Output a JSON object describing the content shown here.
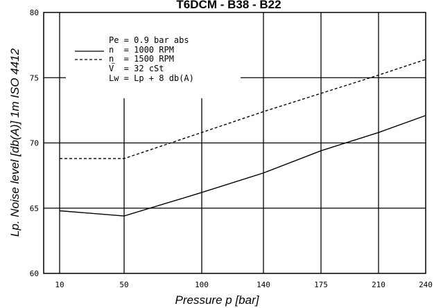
{
  "chart_data": {
    "type": "line",
    "title": "T6DCM - B38 - B22",
    "xlabel": "Pressure p [bar]",
    "ylabel": "Lp. Noise level [db(A)] 1m ISO 4412",
    "categories": [
      "10",
      "50",
      "100",
      "140",
      "175",
      "210",
      "240"
    ],
    "ylim": [
      60,
      80
    ],
    "yticks": [
      "60",
      "65",
      "70",
      "75",
      "80"
    ],
    "grid": true,
    "legend_position": "top-left",
    "legend_lines": [
      "Pe = 0.9 bar abs",
      "n  = 1000 RPM",
      "n  = 1500 RPM",
      "V  = 32 cSt",
      "Lw = Lp + 8 db(A)"
    ],
    "series": [
      {
        "name": "n = 1000 RPM",
        "style": "solid",
        "values": [
          64.8,
          64.4,
          66.2,
          67.7,
          69.4,
          70.8,
          72.1
        ]
      },
      {
        "name": "n = 1500 RPM",
        "style": "dashed",
        "values": [
          68.8,
          68.8,
          70.8,
          72.4,
          73.8,
          75.2,
          76.4
        ]
      }
    ]
  }
}
